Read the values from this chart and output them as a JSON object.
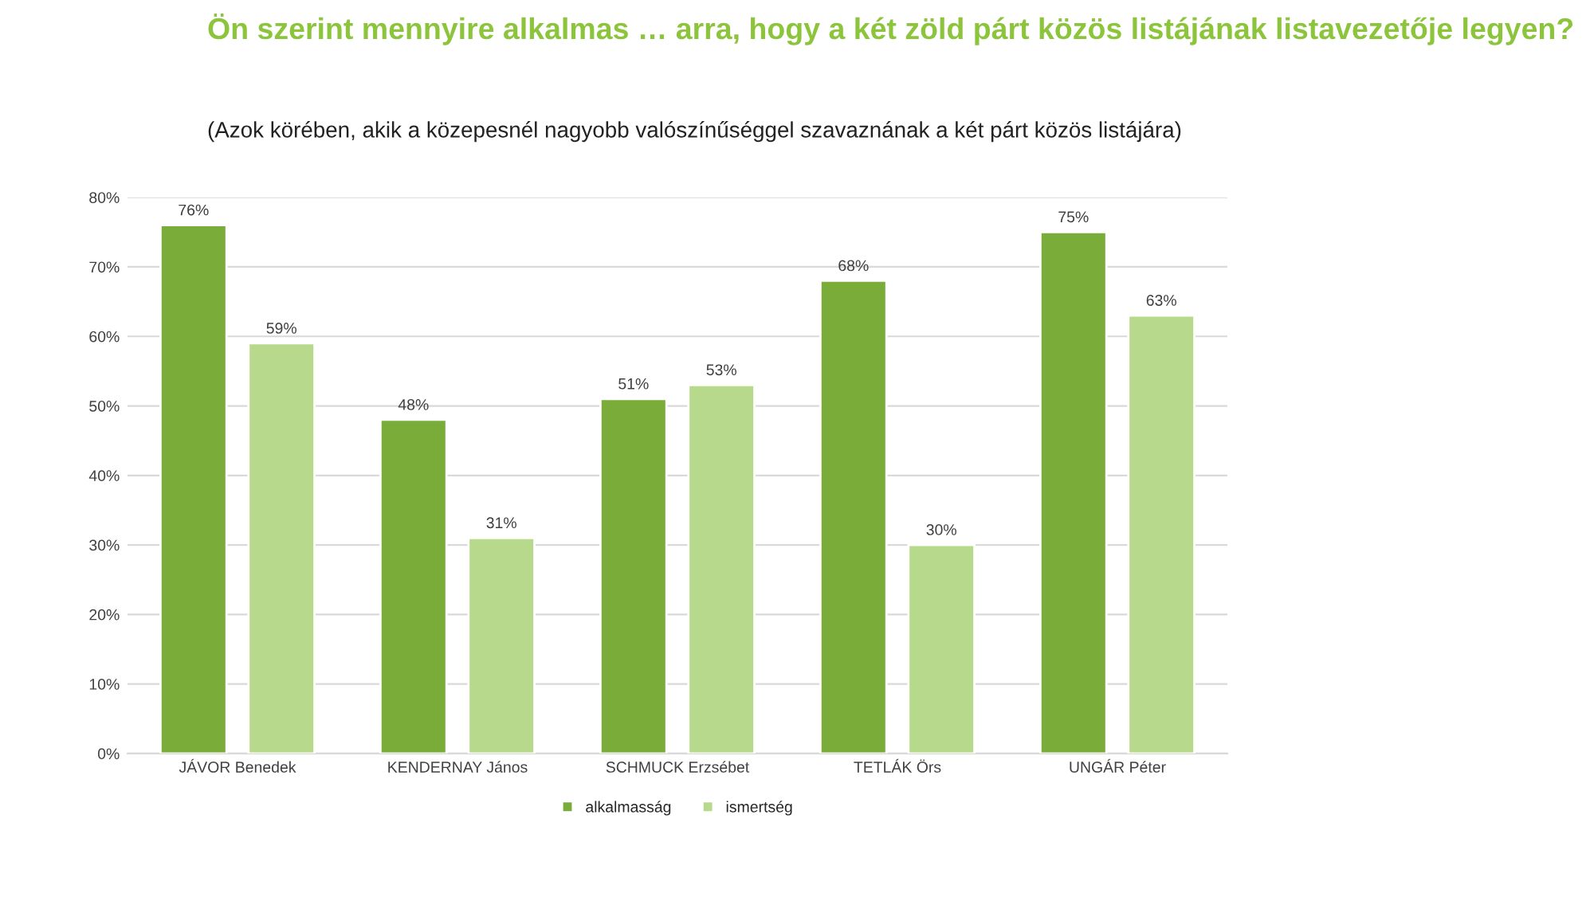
{
  "chart_data": {
    "type": "bar",
    "title": "Ön szerint mennyire alkalmas … arra, hogy a két zöld párt közös listájának listavezetője legyen?",
    "subtitle": "(Azok körében, akik a közepesnél nagyobb valószínűséggel szavaznának a két párt közös listájára)",
    "categories": [
      "JÁVOR Benedek",
      "KENDERNAY János",
      "SCHMUCK Erzsébet",
      "TETLÁK Örs",
      "UNGÁR Péter"
    ],
    "series": [
      {
        "name": "alkalmasság",
        "color": "#7aac3a",
        "values": [
          76,
          48,
          51,
          68,
          75
        ],
        "value_labels": [
          "76%",
          "48%",
          "51%",
          "68%",
          "75%"
        ]
      },
      {
        "name": "ismertség",
        "color": "#b6d98c",
        "values": [
          59,
          31,
          53,
          30,
          63
        ],
        "value_labels": [
          "59%",
          "31%",
          "53%",
          "30%",
          "63%"
        ]
      }
    ],
    "ylim": [
      0,
      80
    ],
    "yticks": [
      {
        "value": 0,
        "label": "0%"
      },
      {
        "value": 10,
        "label": "10%"
      },
      {
        "value": 20,
        "label": "20%"
      },
      {
        "value": 30,
        "label": "30%"
      },
      {
        "value": 40,
        "label": "40%"
      },
      {
        "value": 50,
        "label": "50%"
      },
      {
        "value": 60,
        "label": "60%"
      },
      {
        "value": 70,
        "label": "70%"
      },
      {
        "value": 80,
        "label": "80%"
      }
    ],
    "grid": "y",
    "legend": "bottom"
  }
}
